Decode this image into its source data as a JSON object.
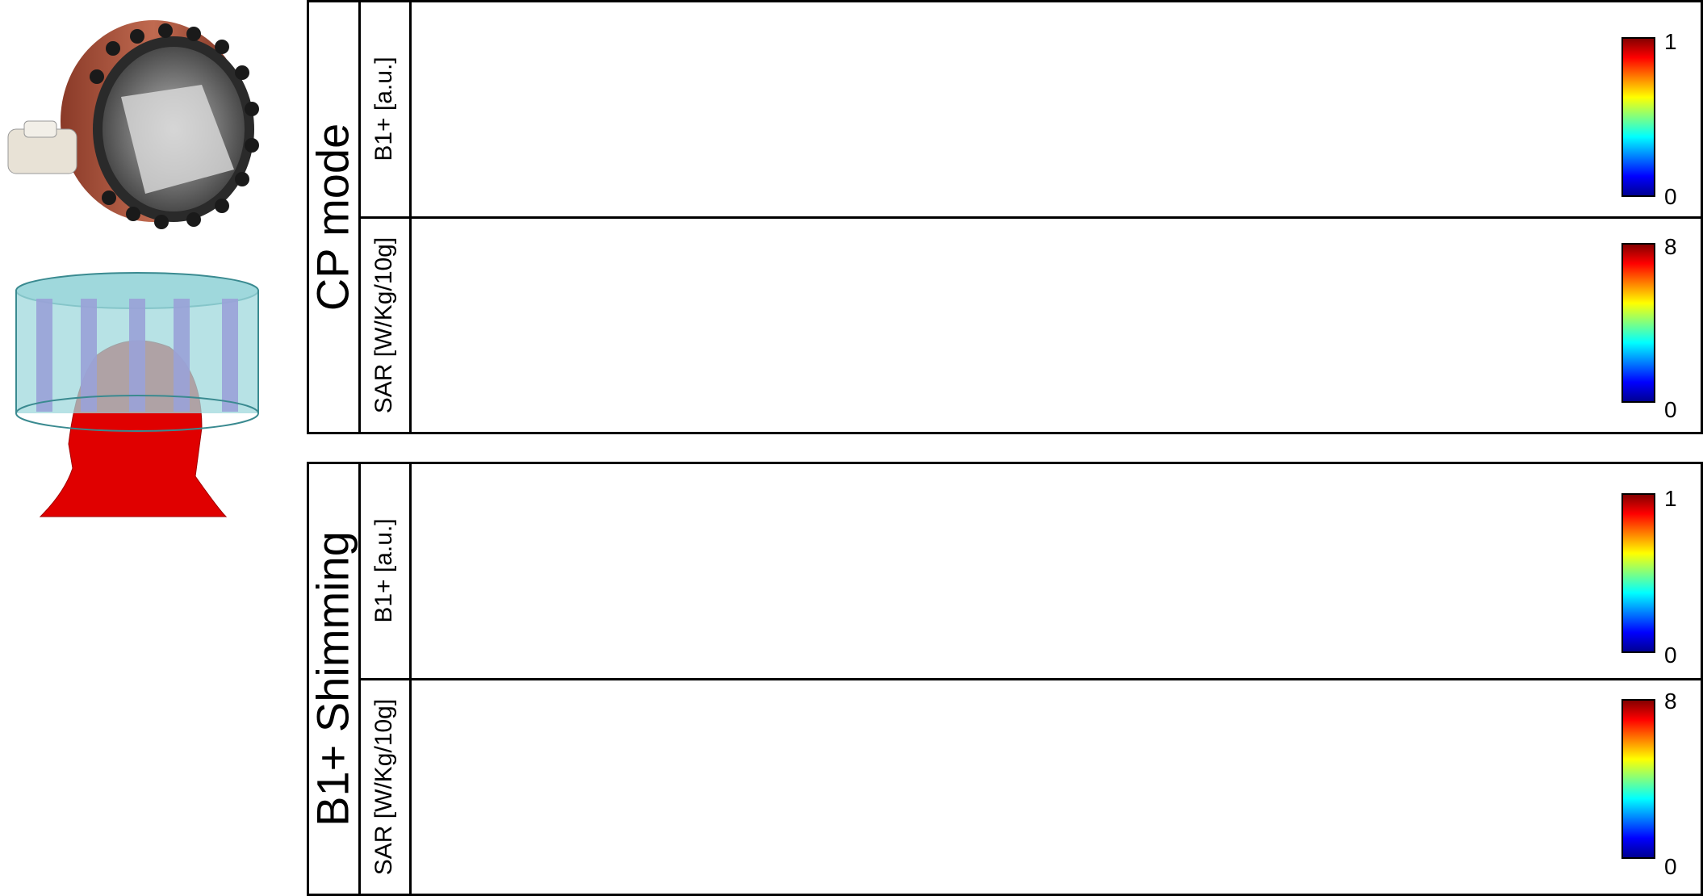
{
  "groups": [
    {
      "label": "CP mode",
      "rows": [
        {
          "label": "B1+ [a.u.]",
          "scale_min": "0",
          "scale_max": "1"
        },
        {
          "label": "SAR [W/Kg/10g]",
          "scale_min": "0",
          "scale_max": "8"
        }
      ]
    },
    {
      "label": "B1+ Shimming",
      "rows": [
        {
          "label": "B1+ [a.u.]",
          "scale_min": "0",
          "scale_max": "1"
        },
        {
          "label": "SAR [W/Kg/10g]",
          "scale_min": "0",
          "scale_max": "8"
        }
      ]
    }
  ],
  "colormap": [
    "#00008f",
    "#0000ff",
    "#0080ff",
    "#00ffff",
    "#80ff80",
    "#ffff00",
    "#ff8000",
    "#ff0000",
    "#800000"
  ],
  "panels_per_row": 7
}
